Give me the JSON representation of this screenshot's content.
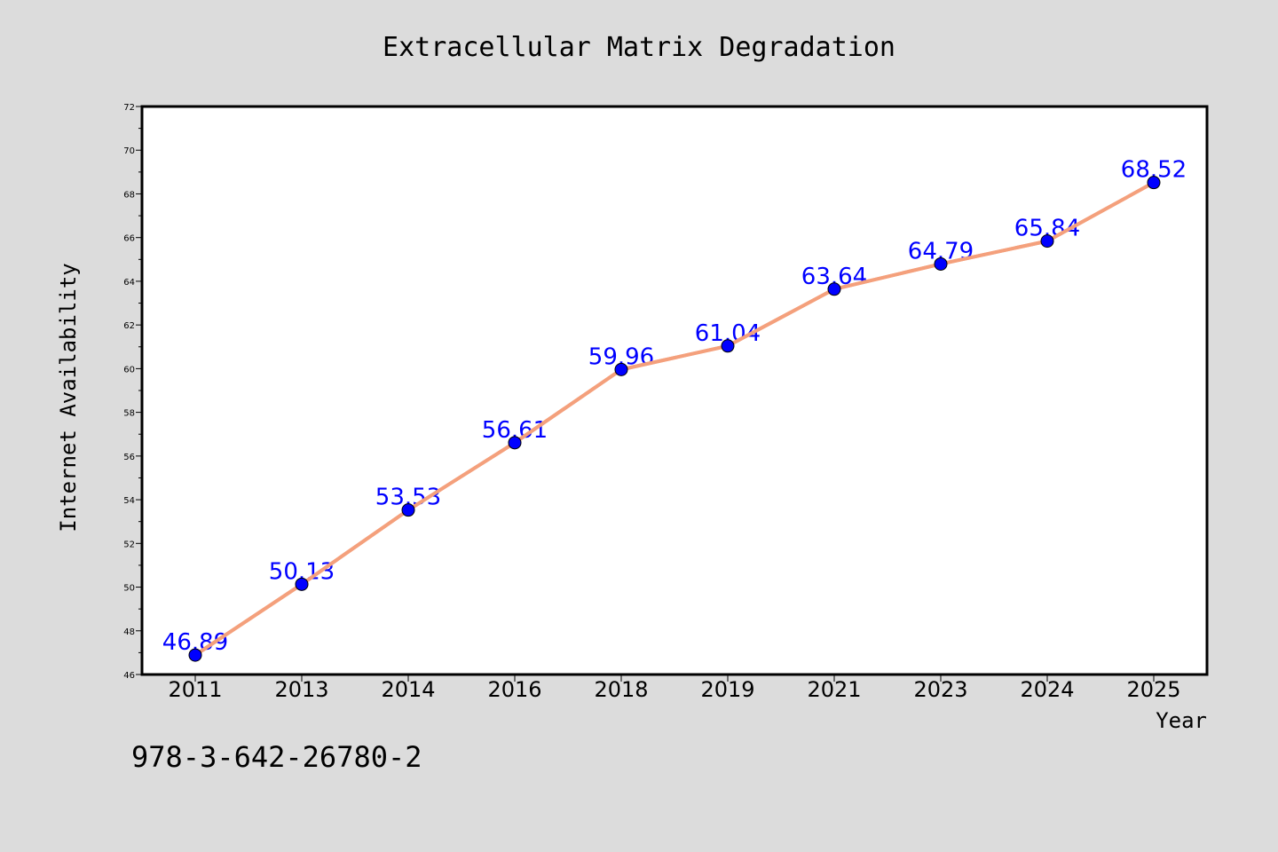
{
  "colors": {
    "background": "#dcdcdc",
    "plot_background": "#ffffff",
    "line": "#f4a07c",
    "marker": "#0000ff",
    "data_label": "#0000ff"
  },
  "footer_text": "978-3-642-26780-2",
  "chart_data": {
    "type": "line",
    "title": "Extracellular Matrix Degradation",
    "xlabel": "Year",
    "ylabel": "Internet Availability",
    "categories": [
      "2011",
      "2013",
      "2014",
      "2016",
      "2018",
      "2019",
      "2021",
      "2023",
      "2024",
      "2025"
    ],
    "series": [
      {
        "values": [
          46.89,
          50.13,
          53.53,
          56.61,
          59.96,
          61.04,
          63.64,
          64.79,
          65.84,
          68.52
        ],
        "labels": [
          "46.89",
          "50.13",
          "53.53",
          "56.61",
          "59.96",
          "61.04",
          "63.64",
          "64.79",
          "65.84",
          "68.52"
        ]
      }
    ],
    "ylim": [
      46,
      72
    ],
    "yticks": [
      "46",
      "48",
      "50",
      "52",
      "54",
      "56",
      "58",
      "60",
      "62",
      "64",
      "66",
      "68",
      "70",
      "72"
    ],
    "grid": false,
    "legend": "none"
  }
}
